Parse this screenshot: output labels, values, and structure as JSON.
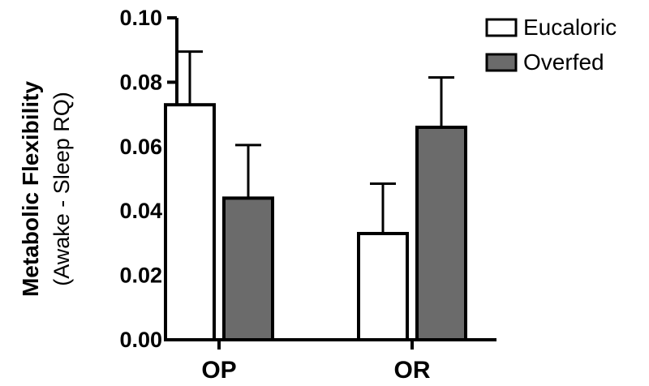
{
  "chart_data": {
    "type": "bar",
    "categories": [
      "OP",
      "OR"
    ],
    "series": [
      {
        "name": "Eucaloric",
        "values": [
          0.073,
          0.033
        ],
        "errors": [
          0.0165,
          0.0155
        ],
        "color": "#ffffff"
      },
      {
        "name": "Overfed",
        "values": [
          0.044,
          0.066
        ],
        "errors": [
          0.0165,
          0.0155
        ],
        "color": "#6b6b6b"
      }
    ],
    "ylabel": "Metabolic Flexibility",
    "ylabel_sub": "(Awake -  Sleep RQ)",
    "ylim": [
      0,
      0.1
    ],
    "yticks": [
      "0.00",
      "0.02",
      "0.04",
      "0.06",
      "0.08",
      "0.10"
    ],
    "grid": false,
    "legend": "top-right"
  }
}
